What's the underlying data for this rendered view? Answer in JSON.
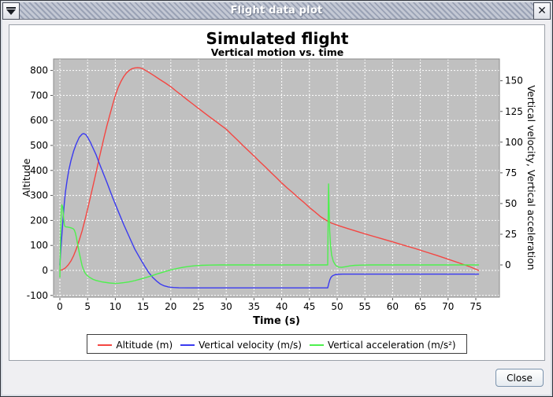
{
  "titlebar": {
    "title": "Flight data plot",
    "menu_icon": "window-menu-triangle",
    "close_icon": "x",
    "close_glyph": "✕"
  },
  "dialog": {
    "close_label": "Close"
  },
  "chart_data": {
    "type": "line",
    "title": "Simulated flight",
    "subtitle": "Vertical motion vs. time",
    "xlabel": "Time (s)",
    "ylabel_left": "Altitude",
    "ylabel_right": "Vertical velocity, Vertical acceleration",
    "x_ticks": [
      0,
      5,
      10,
      15,
      20,
      25,
      30,
      35,
      40,
      45,
      50,
      55,
      60,
      65,
      70,
      75
    ],
    "y_ticks_left": [
      -100,
      0,
      100,
      200,
      300,
      400,
      500,
      600,
      700,
      800
    ],
    "y_ticks_right": [
      0,
      25,
      50,
      75,
      100,
      125,
      150
    ],
    "xlim": [
      0,
      75.5
    ],
    "ylim_left": [
      -100,
      800
    ],
    "ylim_right": [
      -25,
      160
    ],
    "grid": "white dashed on gray",
    "plot_bg": "#c0c0c0",
    "legend_position": "bottom",
    "legend": [
      {
        "label": "Altitude (m)",
        "color": "#f44642"
      },
      {
        "label": "Vertical velocity (m/s)",
        "color": "#3a3af0"
      },
      {
        "label": "Vertical acceleration (m/s²)",
        "color": "#4ef04e"
      }
    ],
    "series": [
      {
        "name": "Altitude (m)",
        "axis": "left",
        "color": "#f44642",
        "points": [
          [
            0,
            0
          ],
          [
            0.5,
            3
          ],
          [
            1,
            10
          ],
          [
            1.5,
            22
          ],
          [
            2,
            38
          ],
          [
            2.5,
            60
          ],
          [
            3,
            88
          ],
          [
            3.5,
            121
          ],
          [
            4,
            158
          ],
          [
            4.5,
            200
          ],
          [
            5,
            245
          ],
          [
            5.5,
            292
          ],
          [
            6,
            340
          ],
          [
            6.5,
            390
          ],
          [
            7,
            440
          ],
          [
            7.5,
            488
          ],
          [
            8,
            535
          ],
          [
            8.5,
            580
          ],
          [
            9,
            622
          ],
          [
            9.5,
            662
          ],
          [
            10,
            700
          ],
          [
            10.5,
            731
          ],
          [
            11,
            755
          ],
          [
            11.5,
            775
          ],
          [
            12,
            790
          ],
          [
            12.5,
            800
          ],
          [
            13,
            807
          ],
          [
            13.5,
            810
          ],
          [
            14,
            811
          ],
          [
            14.5,
            810
          ],
          [
            15,
            806
          ],
          [
            16,
            793
          ],
          [
            17,
            779
          ],
          [
            18,
            764
          ],
          [
            19,
            750
          ],
          [
            20,
            735
          ],
          [
            21,
            717
          ],
          [
            22,
            700
          ],
          [
            23,
            682
          ],
          [
            24,
            665
          ],
          [
            25,
            648
          ],
          [
            26,
            631
          ],
          [
            27,
            614
          ],
          [
            28,
            598
          ],
          [
            29,
            581
          ],
          [
            30,
            565
          ],
          [
            31,
            543
          ],
          [
            32,
            522
          ],
          [
            33,
            500
          ],
          [
            34,
            479
          ],
          [
            35,
            458
          ],
          [
            36,
            436
          ],
          [
            37,
            415
          ],
          [
            38,
            393
          ],
          [
            39,
            372
          ],
          [
            40,
            350
          ],
          [
            41,
            330
          ],
          [
            42,
            311
          ],
          [
            43,
            291
          ],
          [
            44,
            272
          ],
          [
            45,
            252
          ],
          [
            46,
            234
          ],
          [
            47,
            215
          ],
          [
            48,
            201
          ],
          [
            48.4,
            196
          ],
          [
            49,
            189
          ],
          [
            50,
            181
          ],
          [
            51,
            174
          ],
          [
            52,
            167
          ],
          [
            54,
            153
          ],
          [
            56,
            140
          ],
          [
            58,
            127
          ],
          [
            60,
            114
          ],
          [
            62,
            101
          ],
          [
            64,
            88
          ],
          [
            66,
            74
          ],
          [
            68,
            60
          ],
          [
            70,
            45
          ],
          [
            72,
            30
          ],
          [
            74,
            14
          ],
          [
            75.5,
            0
          ]
        ]
      },
      {
        "name": "Vertical velocity (m/s)",
        "axis": "right",
        "color": "#3a3af0",
        "points": [
          [
            0,
            0
          ],
          [
            0.2,
            14
          ],
          [
            0.4,
            27
          ],
          [
            0.6,
            39
          ],
          [
            0.8,
            50
          ],
          [
            1,
            59
          ],
          [
            1.3,
            69
          ],
          [
            1.6,
            77
          ],
          [
            2,
            85
          ],
          [
            2.5,
            93
          ],
          [
            3,
            99
          ],
          [
            3.5,
            104
          ],
          [
            4,
            106.5
          ],
          [
            4.3,
            107
          ],
          [
            4.7,
            106
          ],
          [
            5,
            104
          ],
          [
            5.5,
            100
          ],
          [
            6,
            95
          ],
          [
            6.5,
            90
          ],
          [
            7,
            84
          ],
          [
            7.7,
            76
          ],
          [
            8.5,
            67
          ],
          [
            9.5,
            55
          ],
          [
            10.5,
            44
          ],
          [
            11.5,
            33
          ],
          [
            12.5,
            23
          ],
          [
            13.5,
            13
          ],
          [
            14.5,
            5
          ],
          [
            15.3,
            -1
          ],
          [
            16,
            -6
          ],
          [
            16.7,
            -10
          ],
          [
            17.4,
            -13
          ],
          [
            18.1,
            -15.5
          ],
          [
            18.8,
            -17
          ],
          [
            19.6,
            -18
          ],
          [
            20.5,
            -18.4
          ],
          [
            21.5,
            -18.6
          ],
          [
            24,
            -18.7
          ],
          [
            28,
            -18.7
          ],
          [
            32,
            -18.7
          ],
          [
            36,
            -18.7
          ],
          [
            40,
            -18.7
          ],
          [
            44,
            -18.7
          ],
          [
            48.3,
            -18.7
          ],
          [
            48.5,
            -15
          ],
          [
            48.7,
            -12
          ],
          [
            48.9,
            -10
          ],
          [
            49.2,
            -8.7
          ],
          [
            49.6,
            -8
          ],
          [
            50,
            -7.7
          ],
          [
            51,
            -7.5
          ],
          [
            54,
            -7.5
          ],
          [
            58,
            -7.5
          ],
          [
            62,
            -7.5
          ],
          [
            66,
            -7.5
          ],
          [
            70,
            -7.5
          ],
          [
            75.5,
            -7.5
          ]
        ]
      },
      {
        "name": "Vertical acceleration (m/s²)",
        "axis": "right",
        "color": "#4ef04e",
        "points": [
          [
            0,
            -10
          ],
          [
            0.08,
            12
          ],
          [
            0.15,
            32
          ],
          [
            0.25,
            45
          ],
          [
            0.35,
            49
          ],
          [
            0.5,
            47.5
          ],
          [
            0.6,
            43
          ],
          [
            0.7,
            37
          ],
          [
            0.8,
            33
          ],
          [
            0.9,
            31.5
          ],
          [
            1.1,
            31
          ],
          [
            1.5,
            30.8
          ],
          [
            2,
            30.2
          ],
          [
            2.4,
            29.5
          ],
          [
            2.6,
            28.5
          ],
          [
            2.8,
            26
          ],
          [
            3,
            22
          ],
          [
            3.2,
            17
          ],
          [
            3.5,
            10
          ],
          [
            3.8,
            3.5
          ],
          [
            4,
            -0.5
          ],
          [
            4.3,
            -4.5
          ],
          [
            4.6,
            -7
          ],
          [
            5,
            -9
          ],
          [
            5.5,
            -10.5
          ],
          [
            6,
            -11.8
          ],
          [
            6.5,
            -12.6
          ],
          [
            7,
            -13.2
          ],
          [
            7.5,
            -13.7
          ],
          [
            8,
            -14.1
          ],
          [
            9,
            -14.7
          ],
          [
            9.8,
            -15
          ],
          [
            10.6,
            -14.9
          ],
          [
            11.5,
            -14.5
          ],
          [
            12.5,
            -13.8
          ],
          [
            13.5,
            -12.8
          ],
          [
            14.5,
            -11.6
          ],
          [
            15.5,
            -10.3
          ],
          [
            16.5,
            -8.9
          ],
          [
            17.5,
            -7.4
          ],
          [
            18.5,
            -6
          ],
          [
            19.5,
            -4.7
          ],
          [
            20.5,
            -3.5
          ],
          [
            21.5,
            -2.5
          ],
          [
            22.5,
            -1.7
          ],
          [
            23.5,
            -1.1
          ],
          [
            24.5,
            -0.6
          ],
          [
            25.5,
            -0.3
          ],
          [
            27,
            -0.1
          ],
          [
            29,
            0
          ],
          [
            34,
            0
          ],
          [
            39,
            0
          ],
          [
            44,
            0
          ],
          [
            48.3,
            0
          ],
          [
            48.38,
            40
          ],
          [
            48.45,
            66
          ],
          [
            48.55,
            45
          ],
          [
            48.65,
            28
          ],
          [
            48.8,
            16
          ],
          [
            49,
            8
          ],
          [
            49.3,
            3
          ],
          [
            49.6,
            0.5
          ],
          [
            49.9,
            -1
          ],
          [
            50.3,
            -1.8
          ],
          [
            50.8,
            -2
          ],
          [
            51.5,
            -1.5
          ],
          [
            52.3,
            -0.8
          ],
          [
            53.2,
            -0.3
          ],
          [
            54.5,
            -0.1
          ],
          [
            56,
            0
          ],
          [
            62,
            0
          ],
          [
            68,
            0
          ],
          [
            75.5,
            0
          ]
        ]
      }
    ]
  }
}
